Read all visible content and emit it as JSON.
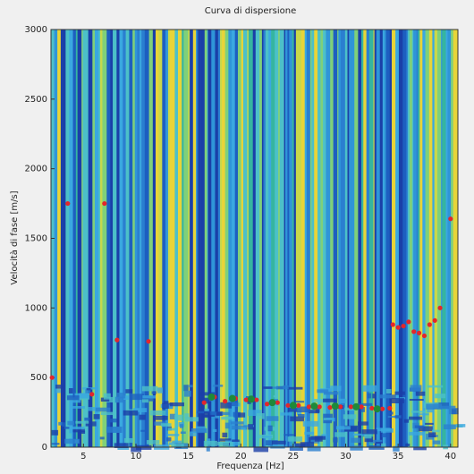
{
  "chart_data": {
    "type": "scatter",
    "title": "Curva di dispersione",
    "x_label": "Frequenza [Hz]",
    "y_label": "Velocità di fase [m/s]",
    "xlim": [
      1.9,
      40.7
    ],
    "ylim": [
      0,
      3000
    ],
    "xticks": [
      5,
      10,
      15,
      20,
      25,
      30,
      35,
      40
    ],
    "yticks": [
      0,
      500,
      1000,
      1500,
      2000,
      2500,
      3000
    ],
    "series": [
      {
        "color": "#e3262b",
        "x": [
          2,
          3.5,
          7,
          5.8,
          8.2,
          11.2,
          16.5,
          17.5,
          18.5,
          19.5,
          20.5,
          21.5,
          22.5,
          23.5,
          24.5,
          25.5,
          26.5,
          27.5,
          28.5,
          29.5,
          30.5,
          31.5,
          32.5,
          33.5,
          34.2,
          34.5,
          35,
          35.5,
          36,
          36.5,
          37,
          37.5,
          38,
          38.5,
          39,
          40
        ],
        "values": [
          500,
          1750,
          1750,
          380,
          770,
          760,
          320,
          360,
          330,
          350,
          340,
          340,
          310,
          320,
          300,
          300,
          290,
          290,
          285,
          290,
          290,
          290,
          280,
          275,
          280,
          880,
          860,
          870,
          900,
          830,
          820,
          800,
          880,
          910,
          1000,
          1640
        ]
      },
      {
        "color": "#1e8a3a",
        "x": [
          17.2,
          19.2,
          21,
          23,
          25,
          27,
          29,
          31,
          33
        ],
        "values": [
          360,
          350,
          345,
          320,
          300,
          295,
          295,
          290,
          275
        ]
      }
    ]
  }
}
